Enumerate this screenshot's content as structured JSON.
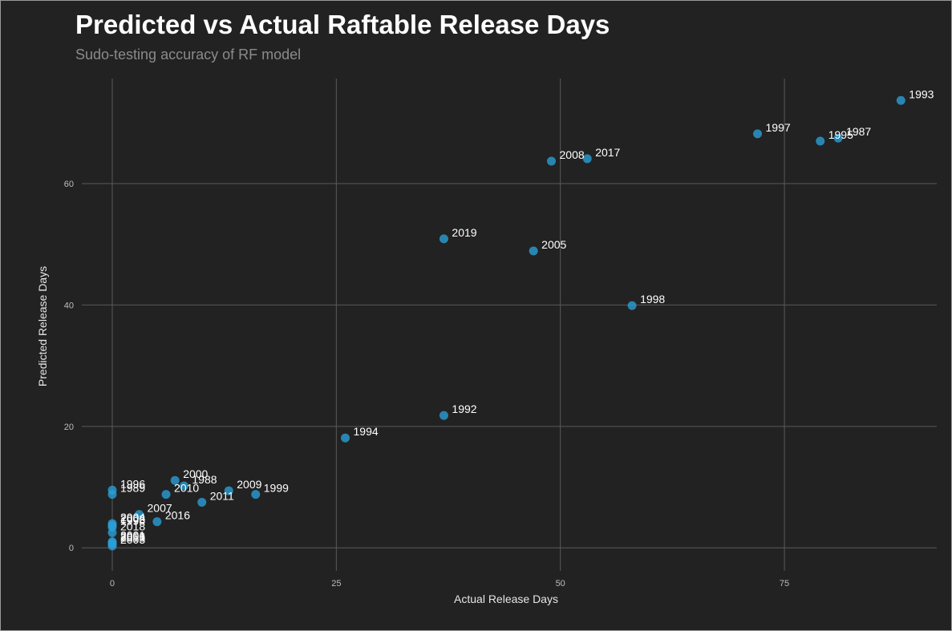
{
  "chart_data": {
    "type": "scatter",
    "title": "Predicted vs Actual Raftable Release Days",
    "subtitle": "Sudo-testing accuracy of RF model",
    "xlabel": "Actual Release Days",
    "ylabel": "Predicted Release Days",
    "xlim": [
      -3.4,
      92
    ],
    "ylim": [
      -3.8,
      77.3
    ],
    "xticks": [
      0,
      25,
      50,
      75
    ],
    "yticks": [
      0,
      20,
      40,
      60
    ],
    "grid": true,
    "legend": "none",
    "colors": {
      "background": "#222222",
      "point": "#2b9fd6",
      "grid": "#5a5a5a",
      "text": "#ffffff"
    },
    "points": [
      {
        "label": "1993",
        "x": 88,
        "y": 73.7
      },
      {
        "label": "1997",
        "x": 72,
        "y": 68.2
      },
      {
        "label": "1995",
        "x": 79,
        "y": 67.0
      },
      {
        "label": "1987",
        "x": 81,
        "y": 67.5
      },
      {
        "label": "2008",
        "x": 49,
        "y": 63.7
      },
      {
        "label": "2017",
        "x": 53,
        "y": 64.1
      },
      {
        "label": "2019",
        "x": 37,
        "y": 50.9
      },
      {
        "label": "2005",
        "x": 47,
        "y": 48.9
      },
      {
        "label": "1998",
        "x": 58,
        "y": 39.9
      },
      {
        "label": "1992",
        "x": 37,
        "y": 21.8
      },
      {
        "label": "1994",
        "x": 26,
        "y": 18.1
      },
      {
        "label": "2000",
        "x": 7,
        "y": 11.1
      },
      {
        "label": "1988",
        "x": 8,
        "y": 10.2
      },
      {
        "label": "1996",
        "x": 0,
        "y": 9.5
      },
      {
        "label": "1989",
        "x": 0,
        "y": 8.8
      },
      {
        "label": "2010",
        "x": 6,
        "y": 8.8
      },
      {
        "label": "2009",
        "x": 13,
        "y": 9.4
      },
      {
        "label": "1999",
        "x": 16,
        "y": 8.8
      },
      {
        "label": "2011",
        "x": 10,
        "y": 7.5
      },
      {
        "label": "2007",
        "x": 3,
        "y": 5.5
      },
      {
        "label": "2016",
        "x": 5,
        "y": 4.3
      },
      {
        "label": "2004",
        "x": 0,
        "y": 4.0
      },
      {
        "label": "2002",
        "x": 0,
        "y": 3.7
      },
      {
        "label": "1990",
        "x": 0,
        "y": 3.4
      },
      {
        "label": "2018",
        "x": 0,
        "y": 2.5
      },
      {
        "label": "2001",
        "x": 0,
        "y": 1.0
      },
      {
        "label": "2006",
        "x": 0,
        "y": 0.8
      },
      {
        "label": "2013",
        "x": 0,
        "y": 0.6
      },
      {
        "label": "2003",
        "x": 0,
        "y": 0.3
      }
    ]
  }
}
